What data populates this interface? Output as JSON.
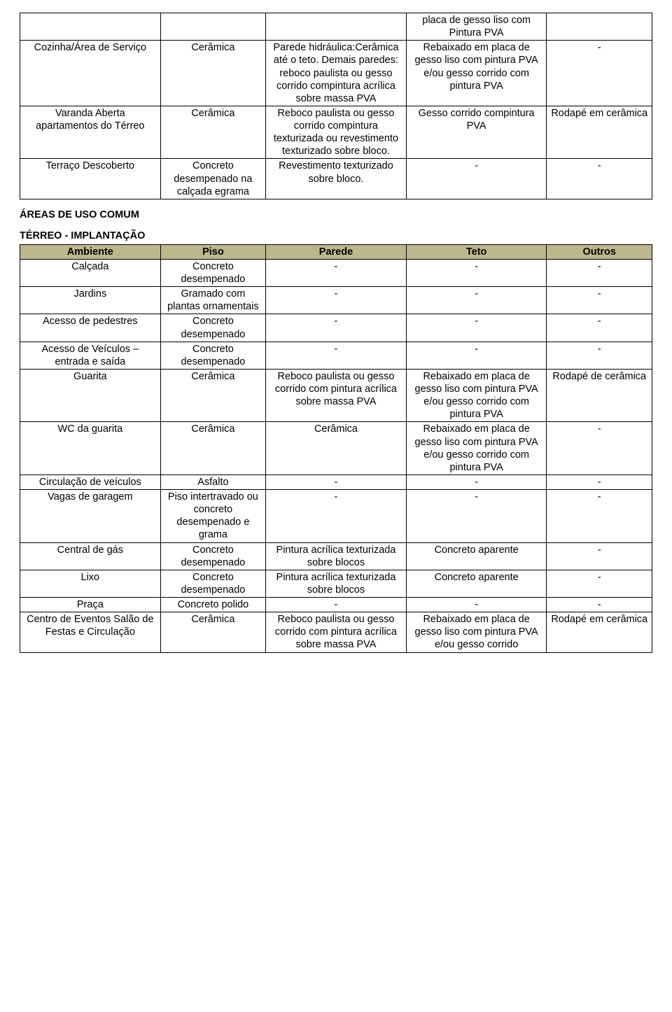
{
  "table1": {
    "rows": [
      {
        "c1": "",
        "c2": "",
        "c3": "",
        "c4": "placa de gesso liso com Pintura PVA",
        "c5": ""
      },
      {
        "c1": "Cozinha/Área de Serviço",
        "c2": "Cerâmica",
        "c3": "Parede hidráulica:Cerâmica até o teto. Demais paredes: reboco paulista ou gesso corrido compintura acrílica sobre massa PVA",
        "c4": "Rebaixado em placa de gesso liso com pintura PVA e/ou gesso corrido com pintura PVA",
        "c5": "-"
      },
      {
        "c1": "Varanda Aberta apartamentos do Térreo",
        "c2": "Cerâmica",
        "c3": "Reboco paulista ou gesso corrido compintura texturizada ou revestimento texturizado sobre bloco.",
        "c4": "Gesso corrido compintura PVA",
        "c5": "Rodapé em cerâmica"
      },
      {
        "c1": "Terraço Descoberto",
        "c2": "Concreto desempenado na calçada egrama",
        "c3": "Revestimento texturizado sobre bloco.",
        "c4": "-",
        "c5": "-"
      }
    ]
  },
  "headings": {
    "areas": "ÁREAS DE USO COMUM",
    "terreo": "TÉRREO - IMPLANTAÇÃO"
  },
  "table2": {
    "headers": {
      "h1": "Ambiente",
      "h2": "Piso",
      "h3": "Parede",
      "h4": "Teto",
      "h5": "Outros"
    },
    "rows": [
      {
        "c1": "Calçada",
        "c2": "Concreto desempenado",
        "c3": "-",
        "c4": "-",
        "c5": "-"
      },
      {
        "c1": "Jardins",
        "c2": "Gramado com plantas ornamentais",
        "c3": "-",
        "c4": "-",
        "c5": "-"
      },
      {
        "c1": "Acesso de pedestres",
        "c2": "Concreto desempenado",
        "c3": "-",
        "c4": "-",
        "c5": "-"
      },
      {
        "c1": "Acesso de Veículos – entrada e saída",
        "c2": "Concreto desempenado",
        "c3": "-",
        "c4": "-",
        "c5": "-"
      },
      {
        "c1": "Guarita",
        "c2": "Cerâmica",
        "c3": "Reboco paulista ou gesso corrido com pintura acrílica sobre massa PVA",
        "c4": "Rebaixado em placa de gesso liso com pintura PVA e/ou gesso corrido com pintura PVA",
        "c5": "Rodapé de cerâmica"
      },
      {
        "c1": "WC da guarita",
        "c2": "Cerâmica",
        "c3": "Cerâmica",
        "c4": "Rebaixado em placa de gesso liso com pintura PVA e/ou gesso corrido com pintura PVA",
        "c5": "-"
      },
      {
        "c1": "Circulação de veículos",
        "c2": "Asfalto",
        "c3": "-",
        "c4": "-",
        "c5": "-"
      },
      {
        "c1": "Vagas de garagem",
        "c2": "Piso intertravado ou concreto desempenado e grama",
        "c3": "-",
        "c4": "-",
        "c5": "-"
      },
      {
        "c1": "Central de gás",
        "c2": "Concreto desempenado",
        "c3": "Pintura acrílica texturizada sobre blocos",
        "c4": "Concreto aparente",
        "c5": "-"
      },
      {
        "c1": "Lixo",
        "c2": "Concreto desempenado",
        "c3": "Pintura acrílica texturizada sobre blocos",
        "c4": "Concreto aparente",
        "c5": "-"
      },
      {
        "c1": "Praça",
        "c2": "Concreto polido",
        "c3": "-",
        "c4": "-",
        "c5": "-"
      },
      {
        "c1": "Centro de Eventos Salão de Festas e Circulação",
        "c2": "Cerâmica",
        "c3": "Reboco paulista ou gesso corrido com pintura acrílica sobre massa PVA",
        "c4": "Rebaixado em placa de gesso liso com pintura PVA e/ou gesso corrido",
        "c5": "Rodapé em cerâmica"
      }
    ]
  }
}
